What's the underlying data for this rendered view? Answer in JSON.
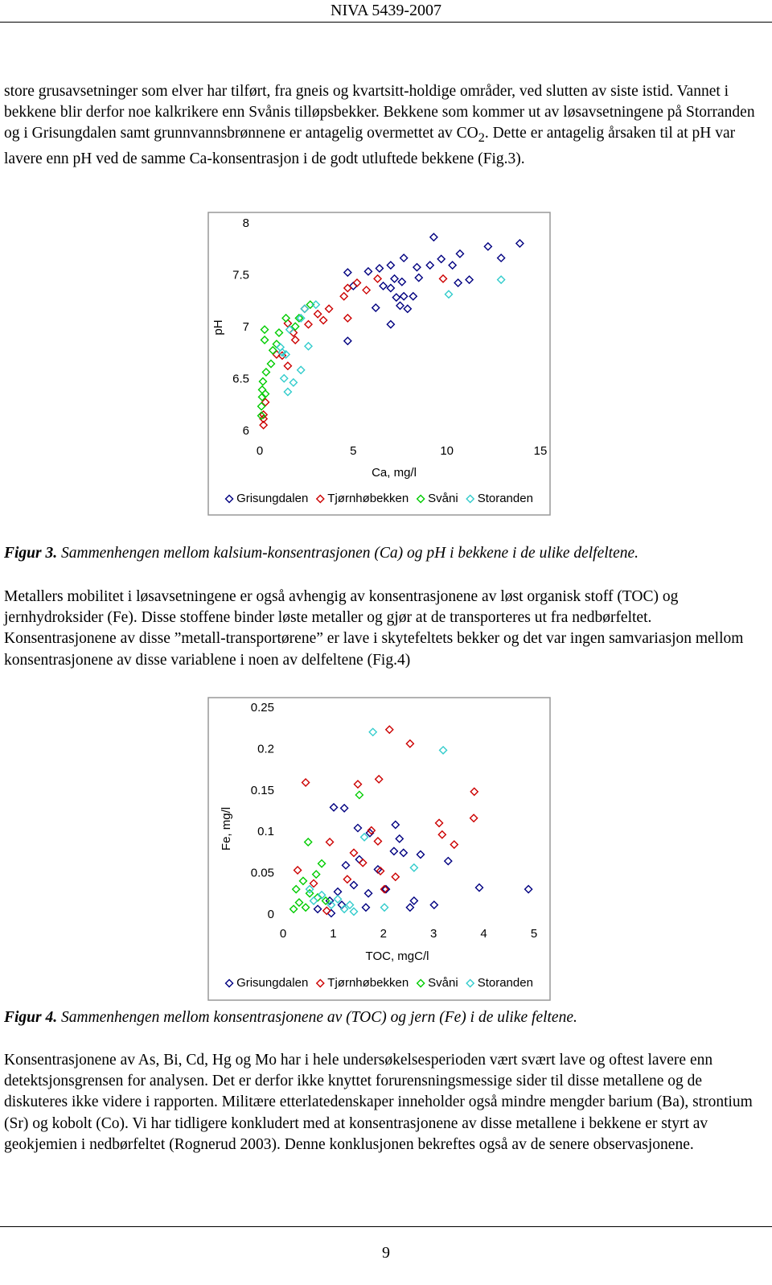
{
  "header": {
    "title": "NIVA 5439-2007"
  },
  "paragraphs": [
    {
      "before": "store grusavsetninger som elver har tilført, fra gneis og kvartsitt-holdige områder, ved slutten av siste istid. Vannet i bekkene blir derfor noe kalkrikere enn Svånis tilløpsbekker. Bekkene som kommer ut av løsavsetningene på Storranden og i Grisungdalen samt grunnvannsbrønnene er antagelig overmettet av CO",
      "sub": "2",
      "after": ". Dette er antagelig årsaken til at pH var lavere enn pH ved de samme Ca-konsentrasjon i de godt utluftede bekkene (Fig.3)."
    },
    {
      "text": "Metallers mobilitet i løsavsetningene er også avhengig av konsentrasjonene av løst organisk stoff (TOC) og jernhydroksider (Fe). Disse stoffene binder løste metaller og gjør at de transporteres ut fra nedbørfeltet. Konsentrasjonene av disse ”metall-transportørene” er lave i skytefeltets bekker og det var ingen samvariasjon mellom konsentrasjonene av disse variablene i noen av delfeltene (Fig.4)"
    },
    {
      "text": "Konsentrasjonene av As, Bi, Cd, Hg og Mo har i hele undersøkelsesperioden vært svært lave og oftest lavere enn detektsjonsgrensen for analysen. Det er derfor ikke knyttet forurensningsmessige sider til disse metallene og de diskuteres ikke videre i rapporten. Militære etterlatedenskaper inneholder også mindre mengder barium (Ba), strontium (Sr) og kobolt (Co). Vi har tidligere konkludert med at konsentrasjonene av disse metallene i bekkene er styrt av geokjemien i nedbørfeltet (Rognerud 2003). Denne konklusjonen bekreftes også av de senere observasjonene."
    }
  ],
  "captions": [
    {
      "label": "Figur 3.",
      "text": "Sammenhengen mellom kalsium-konsentrasjonen (Ca) og pH i bekkene i de ulike delfeltene."
    },
    {
      "label": "Figur 4.",
      "text": "Sammenhengen mellom konsentrasjonene av (TOC) og jern (Fe) i de ulike feltene."
    }
  ],
  "page_number": "9",
  "chart_data": [
    {
      "type": "scatter",
      "x_label": "Ca, mg/l",
      "y_label": "pH",
      "xlim": [
        0,
        15
      ],
      "ylim": [
        6,
        8
      ],
      "xticks": [
        0,
        5,
        10,
        15
      ],
      "yticks": [
        6,
        6.5,
        7,
        7.5,
        8
      ],
      "legend": "bottom",
      "series": [
        {
          "name": "Grisungdalen",
          "color": "#000080",
          "x": [
            9.3,
            12.2,
            13.9,
            12.9,
            10.7,
            9.7,
            10.3,
            4.7,
            5.8,
            6.4,
            7.0,
            7.7,
            8.4,
            9.1,
            10.6,
            11.2,
            7.2,
            7.6,
            8.5,
            6.6,
            7.0,
            6.2,
            7.3,
            7.7,
            8.2,
            7.5,
            7.9,
            7.0,
            4.7,
            5.0
          ],
          "values": [
            7.87,
            7.78,
            7.81,
            7.67,
            7.71,
            7.66,
            7.6,
            7.53,
            7.54,
            7.57,
            7.6,
            7.67,
            7.58,
            7.6,
            7.43,
            7.46,
            7.47,
            7.44,
            7.48,
            7.4,
            7.38,
            7.19,
            7.29,
            7.3,
            7.3,
            7.21,
            7.18,
            7.03,
            6.87,
            7.4
          ]
        },
        {
          "name": "Tjørnhøbekken",
          "color": "#cc0000",
          "x": [
            9.8,
            5.2,
            4.7,
            4.5,
            3.7,
            3.1,
            3.4,
            2.6,
            4.7,
            2.4,
            1.8,
            1.5,
            1.9,
            1.5,
            1.2,
            0.3,
            0.2,
            0.2,
            0.2,
            0.9,
            5.7,
            6.3
          ],
          "values": [
            7.47,
            7.43,
            7.38,
            7.3,
            7.18,
            7.13,
            7.07,
            7.03,
            7.09,
            7.18,
            6.95,
            7.04,
            6.88,
            6.63,
            6.73,
            6.28,
            6.16,
            6.06,
            6.12,
            6.74,
            7.36,
            7.47
          ]
        },
        {
          "name": "Svåni",
          "color": "#00cc00",
          "x": [
            0.26,
            0.26,
            0.34,
            0.17,
            0.13,
            0.13,
            0.09,
            0.09,
            1.03,
            1.4,
            1.9,
            2.7,
            2.1,
            0.7,
            0.9,
            0.6,
            0.3
          ],
          "values": [
            6.98,
            6.88,
            6.57,
            6.48,
            6.4,
            6.33,
            6.24,
            6.15,
            6.95,
            7.09,
            7.01,
            7.22,
            7.09,
            6.78,
            6.84,
            6.65,
            6.36
          ]
        },
        {
          "name": "Storanden",
          "color": "#33cccc",
          "x": [
            12.9,
            10.1,
            2.4,
            3.0,
            2.2,
            1.6,
            1.4,
            1.1,
            1.2,
            2.2,
            1.8,
            1.5,
            2.6,
            1.3
          ],
          "values": [
            7.46,
            7.32,
            7.18,
            7.22,
            7.09,
            6.98,
            6.74,
            6.81,
            6.76,
            6.59,
            6.47,
            6.38,
            6.82,
            6.51
          ]
        }
      ]
    },
    {
      "type": "scatter",
      "x_label": "TOC, mgC/l",
      "y_label": "Fe, mg/l",
      "xlim": [
        0,
        5
      ],
      "ylim": [
        0,
        0.25
      ],
      "xticks": [
        0,
        1,
        2,
        3,
        4,
        5
      ],
      "yticks": [
        0,
        0.05,
        0.1,
        0.15,
        0.2,
        0.25
      ],
      "legend": "bottom",
      "series": [
        {
          "name": "Grisungdalen",
          "color": "#000080",
          "x": [
            1.01,
            1.22,
            1.49,
            1.73,
            2.24,
            2.32,
            2.4,
            2.21,
            2.74,
            3.29,
            3.91,
            4.89,
            1.25,
            1.52,
            1.89,
            1.41,
            1.7,
            2.05,
            0.93,
            1.17,
            1.65,
            3.01,
            2.53,
            0.69,
            0.96,
            2.61,
            1.09
          ],
          "values": [
            0.13,
            0.129,
            0.105,
            0.099,
            0.109,
            0.092,
            0.075,
            0.077,
            0.073,
            0.065,
            0.033,
            0.031,
            0.06,
            0.067,
            0.055,
            0.036,
            0.026,
            0.031,
            0.017,
            0.012,
            0.009,
            0.012,
            0.009,
            0.007,
            0.002,
            0.017,
            0.028
          ]
        },
        {
          "name": "Tjørnhøbekken",
          "color": "#cc0000",
          "x": [
            2.12,
            2.53,
            1.91,
            1.49,
            0.45,
            3.81,
            3.8,
            3.11,
            3.17,
            3.41,
            1.76,
            1.89,
            0.93,
            1.41,
            1.59,
            1.94,
            2.24,
            0.29,
            0.61,
            0.87,
            2.02,
            1.28
          ],
          "values": [
            0.224,
            0.207,
            0.164,
            0.158,
            0.16,
            0.149,
            0.117,
            0.111,
            0.097,
            0.085,
            0.102,
            0.089,
            0.088,
            0.075,
            0.063,
            0.053,
            0.046,
            0.054,
            0.038,
            0.005,
            0.031,
            0.043
          ]
        },
        {
          "name": "Svåni",
          "color": "#00cc00",
          "x": [
            1.52,
            0.5,
            0.77,
            0.66,
            0.4,
            0.26,
            0.53,
            0.32,
            0.21,
            0.45,
            0.69,
            0.85
          ],
          "values": [
            0.145,
            0.088,
            0.062,
            0.049,
            0.041,
            0.031,
            0.026,
            0.015,
            0.007,
            0.009,
            0.021,
            0.017
          ]
        },
        {
          "name": "Storanden",
          "color": "#33cccc",
          "x": [
            1.79,
            3.19,
            1.62,
            2.61,
            0.53,
            0.77,
            1.09,
            1.33,
            1.41,
            1.22,
            0.96,
            0.61,
            2.02
          ],
          "values": [
            0.221,
            0.199,
            0.094,
            0.057,
            0.031,
            0.024,
            0.019,
            0.012,
            0.004,
            0.007,
            0.012,
            0.017,
            0.009
          ]
        }
      ]
    }
  ]
}
